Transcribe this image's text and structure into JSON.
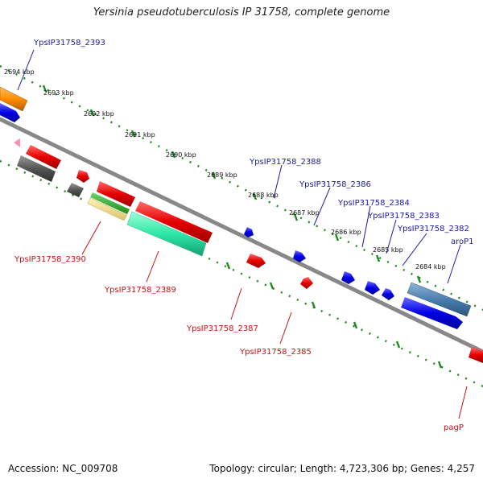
{
  "title": "Yersinia pseudotuberculosis IP 31758, complete genome",
  "footer": {
    "accession": "Accession: NC_009708",
    "summary": "Topology: circular; Length: 4,723,306 bp; Genes: 4,257"
  },
  "scale_labels": [
    "2694 kbp",
    "2693 kbp",
    "2692 kbp",
    "2691 kbp",
    "2690 kbp",
    "2689 kbp",
    "2688 kbp",
    "2687 kbp",
    "2686 kbp",
    "2685 kbp",
    "2684 kbp"
  ],
  "gene_labels": {
    "forward": [
      "YpsIP31758_2393",
      "YpsIP31758_2388",
      "YpsIP31758_2386",
      "YpsIP31758_2384",
      "YpsIP31758_2383",
      "YpsIP31758_2382",
      "aroP1"
    ],
    "reverse": [
      "YpsIP31758_2390",
      "YpsIP31758_2389",
      "YpsIP31758_2387",
      "YpsIP31758_2385",
      "pagP"
    ]
  },
  "colors": {
    "forward_label": "#1a1aa6",
    "reverse_label": "#cc1111",
    "scale_dots": "#1a8a1a",
    "backbone": "#888888"
  }
}
